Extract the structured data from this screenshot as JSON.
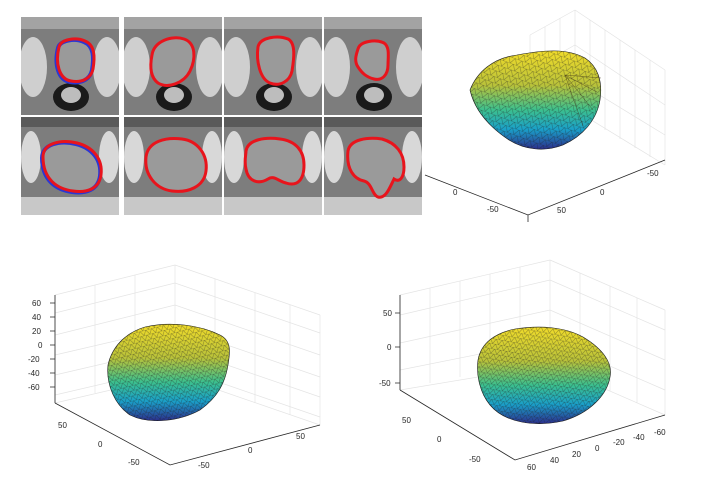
{
  "ct_grid": {
    "rows": 2,
    "cols": 4,
    "contour_color": "#e8141c",
    "reference_contour_color": "#2a37d4",
    "background_color": "#7d7d7d"
  },
  "colormap": [
    "#2b2f8c",
    "#1aa0c9",
    "#3cc08e",
    "#b9c23a",
    "#f1dc2a"
  ],
  "mesh_plots": [
    {
      "x_ticks": [
        "50",
        "0",
        "-50"
      ],
      "y_ticks": [
        "0",
        "-50"
      ],
      "z_ticks": []
    },
    {
      "x_ticks": [
        "50",
        "0",
        "-50"
      ],
      "y_ticks": [
        "-50",
        "0",
        "50"
      ],
      "z_ticks": [
        "60",
        "40",
        "20",
        "0",
        "-20",
        "-40",
        "-60"
      ]
    },
    {
      "x_ticks": [
        "50",
        "0",
        "-50"
      ],
      "y_ticks": [
        "60",
        "40",
        "20",
        "0",
        "-20",
        "-40",
        "-60"
      ],
      "z_ticks": [
        "50",
        "0",
        "-50"
      ]
    }
  ]
}
